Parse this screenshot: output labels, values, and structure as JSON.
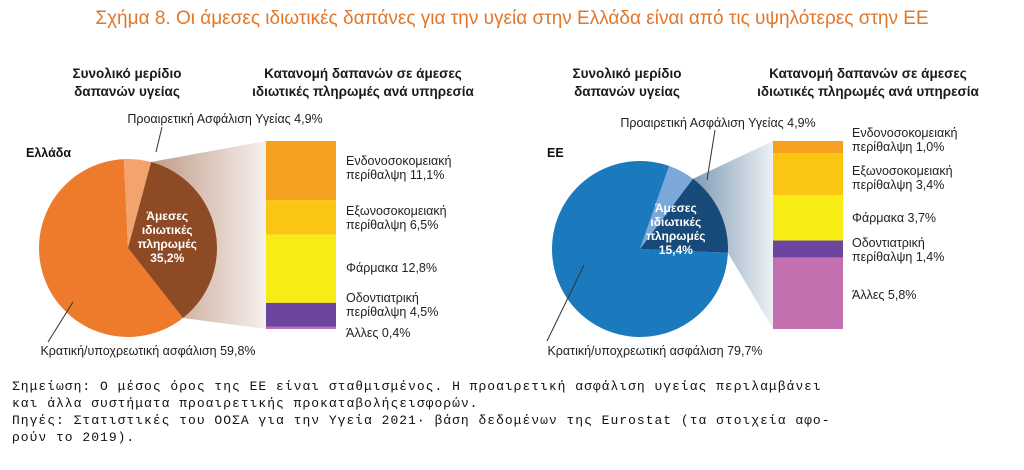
{
  "title": "Σχήμα 8. Οι άμεσες ιδιωτικές δαπάνες για την υγεία στην Ελλάδα είναι από τις υψηλότερες στην ΕΕ",
  "colors": {
    "title": "#e2772a",
    "gr_state": "#ee7a2b",
    "gr_voluntary": "#f3a36e",
    "gr_oop": "#8e4a25",
    "eu_state": "#1b79be",
    "eu_voluntary": "#7ba7d9",
    "eu_oop": "#174a78",
    "inpatient": "#f5a11f",
    "outpatient": "#fbc514",
    "pharma": "#f7ec14",
    "dental": "#6c45a0",
    "other": "#c36fb0"
  },
  "chart_data": [
    {
      "type": "pie",
      "panel": "Ελλάδα",
      "pie_title": [
        "Συνολικό μερίδιο",
        "δαπανών υγείας"
      ],
      "slices": [
        {
          "label": "Κρατική/υποχρεωτική ασφάλιση 59,8%",
          "value": 59.8,
          "color": "#ee7a2b"
        },
        {
          "label": "Προαιρετική Ασφάλιση Υγείας 4,9%",
          "value": 4.9,
          "color": "#f3a36e"
        },
        {
          "label": "Άμεσες ιδιωτικές πληρωμές 35,2%",
          "value": 35.2,
          "color": "#8e4a25"
        }
      ],
      "center_label": [
        "Άμεσες",
        "ιδιωτικές",
        "πληρωμές",
        "35,2%"
      ],
      "bar_title": [
        "Κατανομή δαπανών σε άμεσες",
        "ιδιωτικές πληρωμές ανά υπηρεσία"
      ],
      "bar_segments": [
        {
          "label": [
            "Ενδονοσοκομειακή",
            "περίθαλψη 11,1%"
          ],
          "value": 11.1,
          "color": "#f5a11f"
        },
        {
          "label": [
            "Εξωνοσοκομειακή",
            "περίθαλψη 6,5%"
          ],
          "value": 6.5,
          "color": "#fbc514"
        },
        {
          "label": [
            "Φάρμακα 12,8%"
          ],
          "value": 12.8,
          "color": "#f7ec14"
        },
        {
          "label": [
            "Οδοντιατρική",
            "περίθαλψη 4,5%"
          ],
          "value": 4.5,
          "color": "#6c45a0"
        },
        {
          "label": [
            "Άλλες 0,4%"
          ],
          "value": 0.4,
          "color": "#c36fb0"
        }
      ]
    },
    {
      "type": "pie",
      "panel": "ΕΕ",
      "pie_title": [
        "Συνολικό μερίδιο",
        "δαπανών υγείας"
      ],
      "slices": [
        {
          "label": "Κρατική/υποχρεωτική ασφάλιση 79,7%",
          "value": 79.7,
          "color": "#1b79be"
        },
        {
          "label": "Προαιρετική Ασφάλιση Υγείας 4,9%",
          "value": 4.9,
          "color": "#7ba7d9"
        },
        {
          "label": "Άμεσες ιδιωτικές πληρωμές 15,4%",
          "value": 15.4,
          "color": "#174a78"
        }
      ],
      "center_label": [
        "Άμεσες",
        "ιδιωτικές",
        "πληρωμές",
        "15,4%"
      ],
      "bar_title": [
        "Κατανομή δαπανών σε άμεσες",
        "ιδιωτικές πληρωμές ανά υπηρεσία"
      ],
      "bar_segments": [
        {
          "label": [
            "Ενδονοσοκομειακή",
            "περίθαλψη 1,0%"
          ],
          "value": 1.0,
          "color": "#f5a11f"
        },
        {
          "label": [
            "Εξωνοσοκομειακή",
            "περίθαλψη 3,4%"
          ],
          "value": 3.4,
          "color": "#fbc514"
        },
        {
          "label": [
            "Φάρμακα 3,7%"
          ],
          "value": 3.7,
          "color": "#f7ec14"
        },
        {
          "label": [
            "Οδοντιατρική",
            "περίθαλψη 1,4%"
          ],
          "value": 1.4,
          "color": "#6c45a0"
        },
        {
          "label": [
            "Άλλες 5,8%"
          ],
          "value": 5.8,
          "color": "#c36fb0"
        }
      ]
    }
  ],
  "notes": [
    "Σημείωση: Ο μέσος όρος της ΕΕ είναι σταθμισμένος. Η προαιρετική ασφάλιση υγείας περιλαμβάνει",
    "και άλλα συστήματα προαιρετικής προκαταβολήςεισφορών.",
    "Πηγές: Στατιστικές του ΟΟΣΑ για την Υγεία 2021· βάση δεδομένων της Eurostat (τα στοιχεία αφο-",
    "ρούν το 2019)."
  ]
}
